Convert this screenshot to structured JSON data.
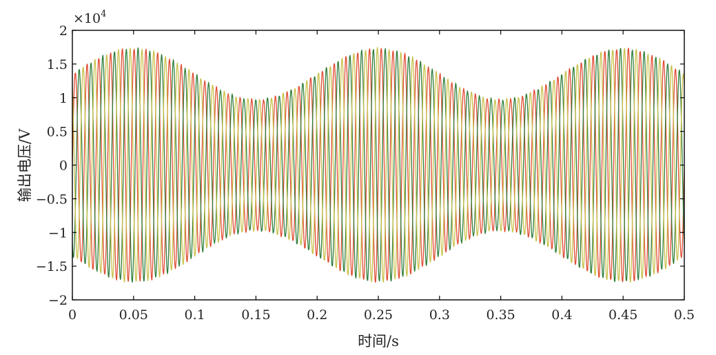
{
  "chart_data": {
    "type": "line",
    "title": "",
    "xlabel": "时间/s",
    "ylabel": "输出电压/V",
    "xlim": [
      0,
      0.5
    ],
    "ylim": [
      -2,
      2
    ],
    "y_multiplier_base": "×10",
    "y_multiplier_exp": "4",
    "x_ticks": [
      0,
      0.05,
      0.1,
      0.15,
      0.2,
      0.25,
      0.3,
      0.35,
      0.4,
      0.45,
      0.5
    ],
    "x_tick_labels": [
      "0",
      "0.05",
      "0.1",
      "0.15",
      "0.2",
      "0.25",
      "0.3",
      "0.35",
      "0.4",
      "0.45",
      "0.5"
    ],
    "y_ticks": [
      -2,
      -1.5,
      -1,
      -0.5,
      0,
      0.5,
      1,
      1.5,
      2
    ],
    "y_tick_labels": [
      "−2",
      "−1.5",
      "−1",
      "−0.5",
      "0",
      "0.5",
      "1",
      "1.5",
      "2"
    ],
    "grid": false,
    "legend": "none",
    "series": [
      {
        "color": "#e04b32",
        "model": "three-phase modulated sinusoid",
        "carrier_frequency_hz": 104,
        "phase_deg": 0,
        "envelope_mean": 1.35,
        "envelope_amplitude": 0.38,
        "envelope_frequency_hz": 5,
        "envelope_peak_time_s": 0.05
      },
      {
        "color": "#2e7d3a",
        "model": "three-phase modulated sinusoid",
        "carrier_frequency_hz": 104,
        "phase_deg": -120,
        "envelope_mean": 1.35,
        "envelope_amplitude": 0.38,
        "envelope_frequency_hz": 5,
        "envelope_peak_time_s": 0.05
      },
      {
        "color": "#c8c14a",
        "model": "three-phase modulated sinusoid",
        "carrier_frequency_hz": 104,
        "phase_deg": 120,
        "envelope_mean": 1.35,
        "envelope_amplitude": 0.38,
        "envelope_frequency_hz": 5,
        "envelope_peak_time_s": 0.05
      }
    ]
  }
}
